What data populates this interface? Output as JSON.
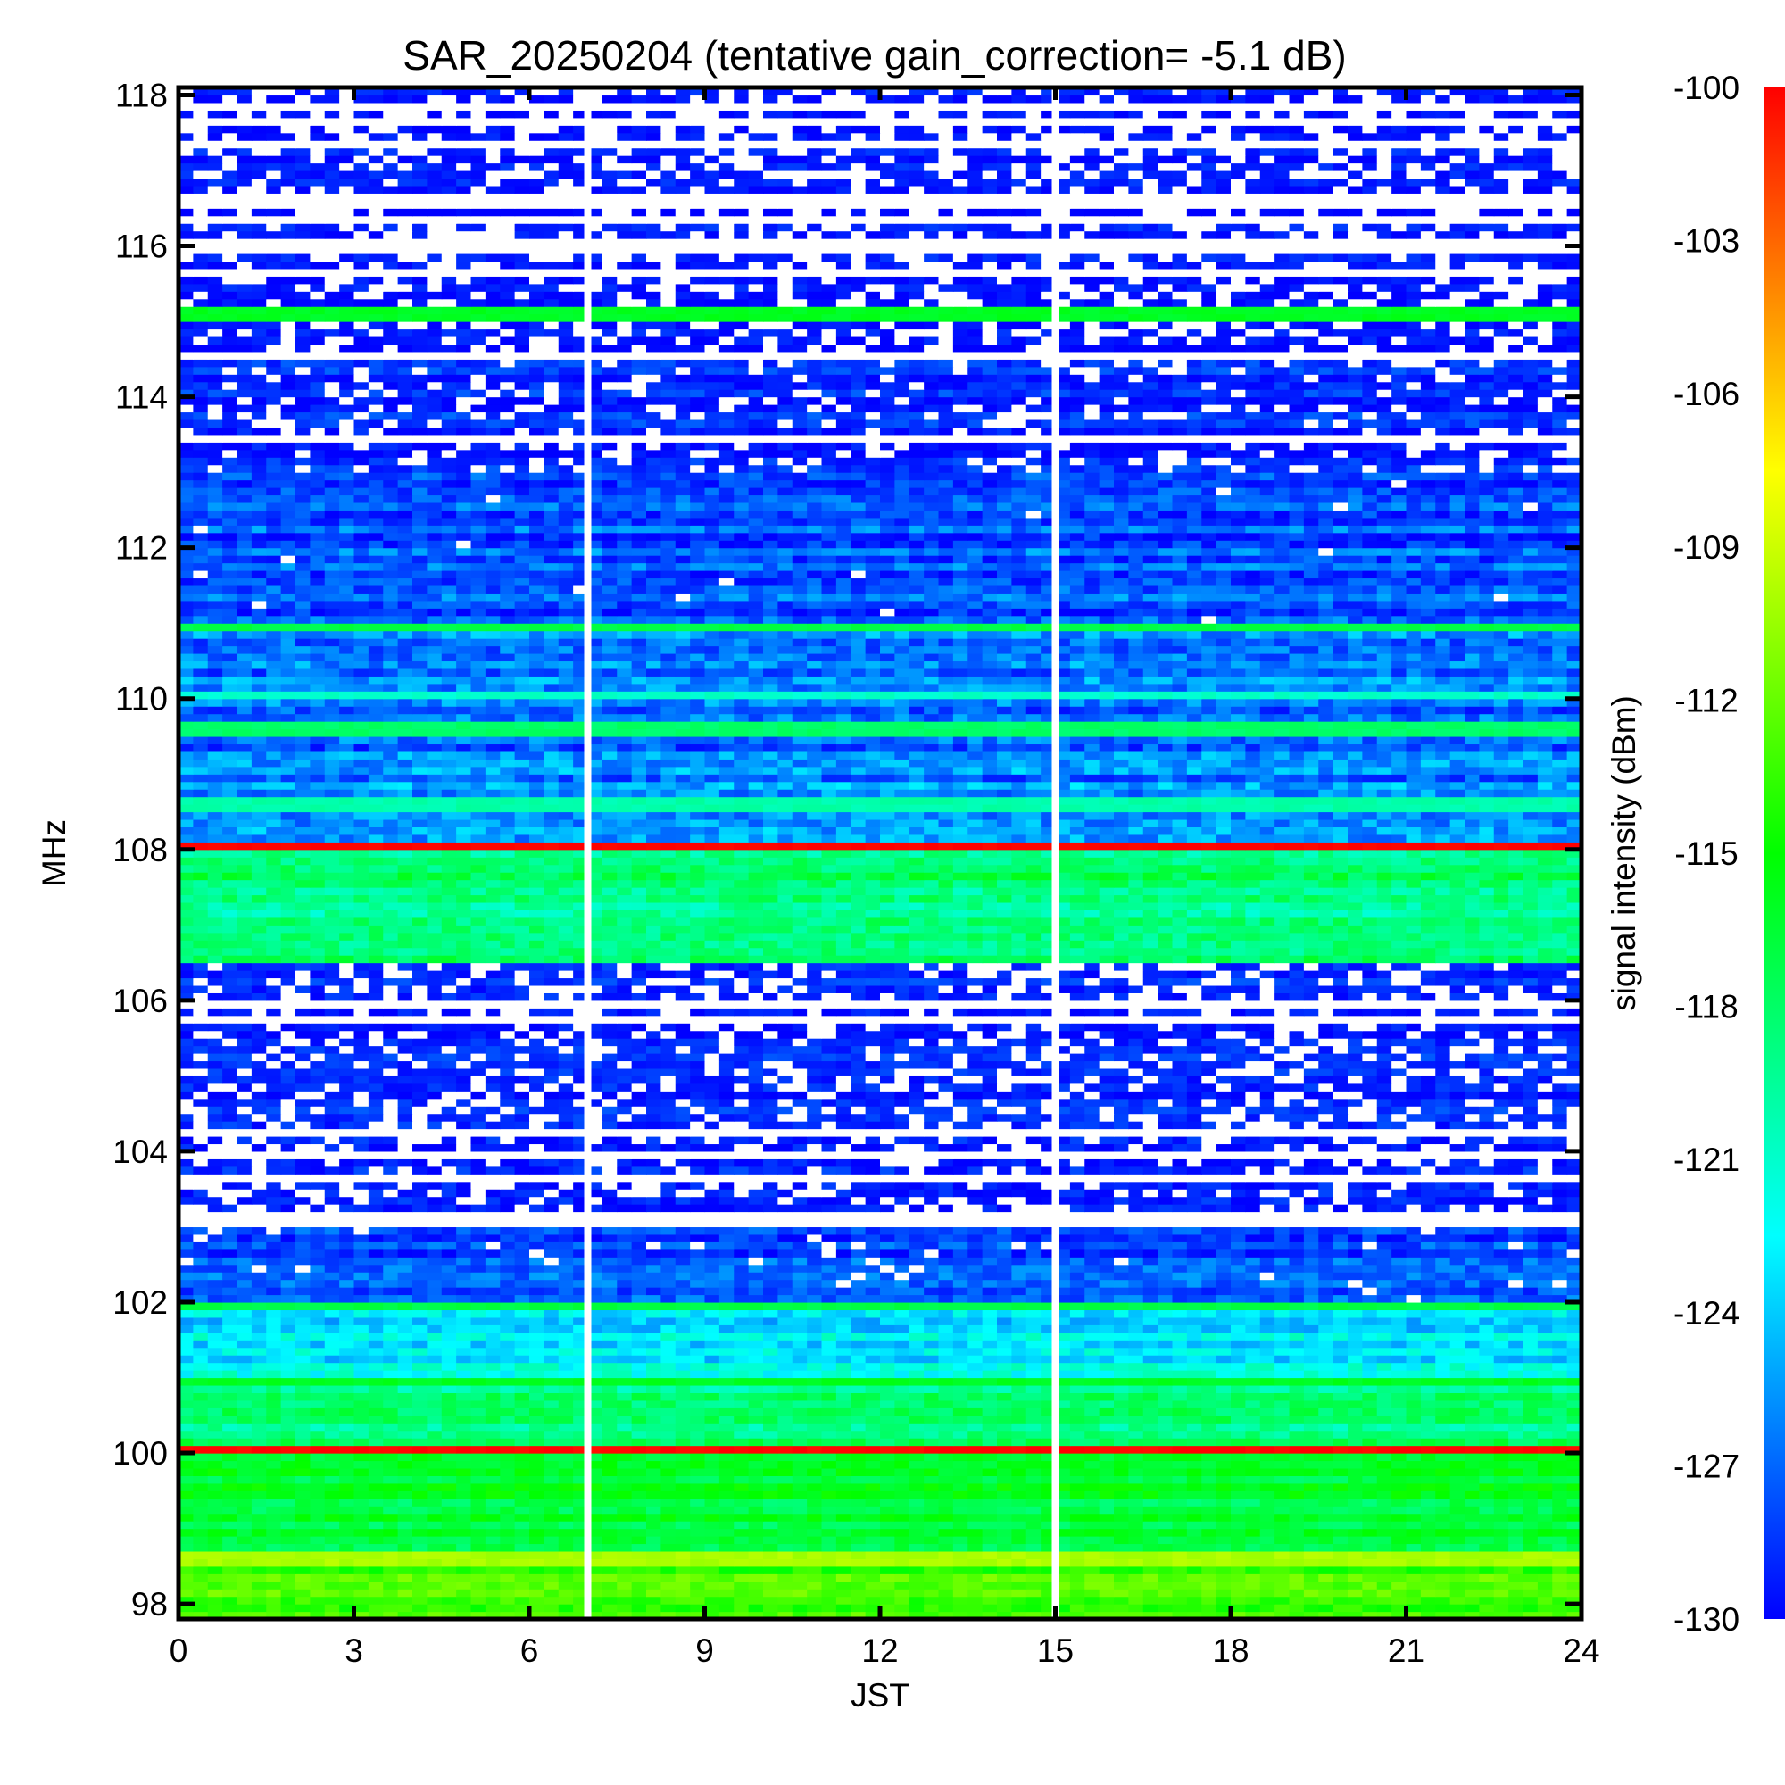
{
  "chart_data": {
    "type": "heatmap",
    "title": "SAR_20250204 (tentative gain_correction= -5.1 dB)",
    "xlabel": "JST",
    "ylabel": "MHz",
    "colorbar_label": "signal intensity (dBm)",
    "xlim": [
      0,
      24
    ],
    "ylim": [
      97.8,
      118.1
    ],
    "x_ticks": [
      "0",
      "3",
      "6",
      "9",
      "12",
      "15",
      "18",
      "21",
      "24"
    ],
    "x_tick_values": [
      0,
      3,
      6,
      9,
      12,
      15,
      18,
      21,
      24
    ],
    "y_ticks": [
      "98",
      "100",
      "102",
      "104",
      "106",
      "108",
      "110",
      "112",
      "114",
      "116",
      "118"
    ],
    "y_tick_values": [
      98,
      100,
      102,
      104,
      106,
      108,
      110,
      112,
      114,
      116,
      118
    ],
    "colorbar_ticks": [
      "-100",
      "-103",
      "-106",
      "-109",
      "-112",
      "-115",
      "-118",
      "-121",
      "-124",
      "-127",
      "-130"
    ],
    "colorbar_values": [
      -100,
      -103,
      -106,
      -109,
      -112,
      -115,
      -118,
      -121,
      -124,
      -127,
      -130
    ],
    "color_range": [
      -130,
      -100
    ],
    "colormap": [
      "#0000ff",
      "#00ffff",
      "#00ff00",
      "#ffff00",
      "#ff0000"
    ],
    "data_gaps_jst": [
      7.0,
      15.0
    ],
    "frequency_bands": [
      {
        "from": 97.8,
        "to": 98.7,
        "dbm": -113,
        "noise": 1.5,
        "white": 0.0
      },
      {
        "from": 98.7,
        "to": 100.0,
        "dbm": -116.5,
        "noise": 1.5,
        "white": 0.0
      },
      {
        "from": 100.0,
        "to": 100.1,
        "dbm": -100,
        "noise": 0.3,
        "white": 0.0
      },
      {
        "from": 100.1,
        "to": 101.0,
        "dbm": -118.5,
        "noise": 1.8,
        "white": 0.0
      },
      {
        "from": 101.0,
        "to": 102.0,
        "dbm": -123,
        "noise": 2.0,
        "white": 0.0
      },
      {
        "from": 102.0,
        "to": 103.0,
        "dbm": -128,
        "noise": 2.0,
        "white": 0.05
      },
      {
        "from": 103.0,
        "to": 104.4,
        "dbm": -129,
        "noise": 1.5,
        "white": 0.5
      },
      {
        "from": 104.4,
        "to": 106.5,
        "dbm": -129,
        "noise": 1.2,
        "white": 0.45
      },
      {
        "from": 106.5,
        "to": 108.0,
        "dbm": -118.5,
        "noise": 2.0,
        "white": 0.0
      },
      {
        "from": 108.0,
        "to": 108.1,
        "dbm": -100,
        "noise": 0.3,
        "white": 0.0
      },
      {
        "from": 108.1,
        "to": 111.0,
        "dbm": -126,
        "noise": 2.5,
        "white": 0.0
      },
      {
        "from": 111.0,
        "to": 113.0,
        "dbm": -127.5,
        "noise": 2.2,
        "white": 0.02
      },
      {
        "from": 113.0,
        "to": 114.5,
        "dbm": -129,
        "noise": 1.5,
        "white": 0.35
      },
      {
        "from": 114.5,
        "to": 118.1,
        "dbm": -129.5,
        "noise": 1.0,
        "white": 0.6
      }
    ],
    "persistent_lines": [
      {
        "mhz": 115.1,
        "dbm": -116
      },
      {
        "mhz": 110.9,
        "dbm": -117
      },
      {
        "mhz": 110.0,
        "dbm": -121
      },
      {
        "mhz": 109.6,
        "dbm": -118
      },
      {
        "mhz": 108.6,
        "dbm": -120
      },
      {
        "mhz": 101.9,
        "dbm": -117
      },
      {
        "mhz": 100.9,
        "dbm": -116
      },
      {
        "mhz": 98.6,
        "dbm": -110
      }
    ]
  }
}
